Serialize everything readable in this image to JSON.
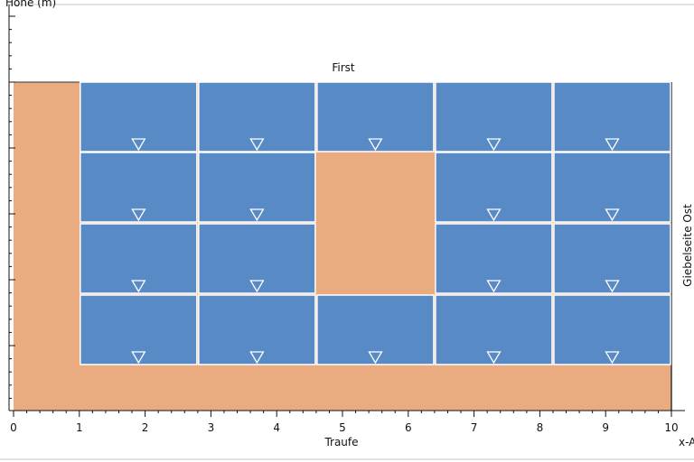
{
  "labels": {
    "y_axis": "Höhe (m)",
    "top_edge": "First",
    "bottom_edge": "Traufe",
    "right_edge": "Giebelseite Ost",
    "x_axis": "x-A"
  },
  "colors": {
    "roof": "#eaab80",
    "panel": "#588ac6",
    "panel_border": "#ffffff",
    "marker": "#ffffff",
    "axis": "#111111",
    "frame": "#c8c8c8"
  },
  "x_axis": {
    "min": 0,
    "max": 10,
    "ticks": [
      "0",
      "1",
      "2",
      "3",
      "4",
      "5",
      "6",
      "7",
      "8",
      "9",
      "10"
    ]
  },
  "roof_area": {
    "x_min": 0,
    "x_max": 10
  },
  "grid": {
    "x_start": 1.0,
    "column_width": 1.8,
    "columns": 5,
    "rows": 4
  },
  "empty_cells": [
    {
      "row": 1,
      "col": 2
    },
    {
      "row": 2,
      "col": 2
    }
  ],
  "marker_icon": "triangle-down-icon"
}
